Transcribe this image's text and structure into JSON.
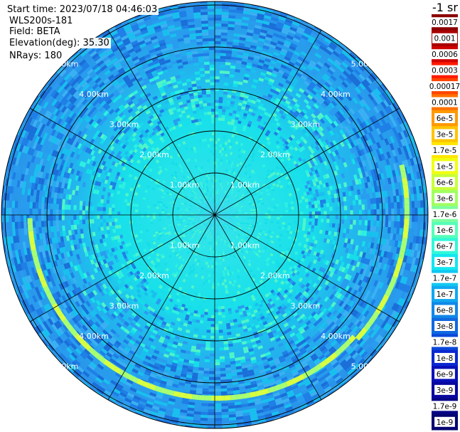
{
  "header": {
    "start_time": "Start time: 2023/07/18 04:46:03",
    "instrument": "WLS200s-181",
    "field": "Field: BETA",
    "elevation": "Elevation(deg): 35.30",
    "nrays": "NRays: 180"
  },
  "chart_data": {
    "type": "heatmap",
    "projection": "polar",
    "unit_title": "-1 sr",
    "range_rings_km": [
      1,
      2,
      3,
      4,
      5
    ],
    "range_labels": [
      "1.00km",
      "2.00km",
      "3.00km",
      "4.00km",
      "5.00km"
    ],
    "radial_lines_deg": [
      0,
      30,
      60,
      90,
      120,
      150,
      180,
      210,
      240,
      270,
      300,
      330
    ],
    "colorbar_labels": [
      "0.0017",
      "0.001",
      "0.0006",
      "0.0003",
      "0.00017",
      "0.0001",
      "6e-5",
      "3e-5",
      "1.7e-5",
      "1e-5",
      "6e-6",
      "3e-6",
      "1.7e-6",
      "1e-6",
      "6e-7",
      "3e-7",
      "1.7e-7",
      "1e-7",
      "6e-8",
      "3e-8",
      "1.7e-8",
      "1e-8",
      "6e-9",
      "3e-9",
      "1.7e-9",
      "1e-9"
    ],
    "colorbar_colors": [
      "#8b0000",
      "#a80000",
      "#d00000",
      "#ff1a00",
      "#ff4500",
      "#ff7000",
      "#ff9a00",
      "#ffc400",
      "#ffe600",
      "#f0ff10",
      "#c8ff3a",
      "#a0ff60",
      "#7cffa0",
      "#55ffb8",
      "#30f8d8",
      "#14e6f0",
      "#10c8f0",
      "#10a8f0",
      "#1088e8",
      "#1068e0",
      "#0a48d8",
      "#0a28d0",
      "#0810b8",
      "#0808a0",
      "#060688",
      "#040470"
    ],
    "background_color": "#1fb4ef"
  }
}
